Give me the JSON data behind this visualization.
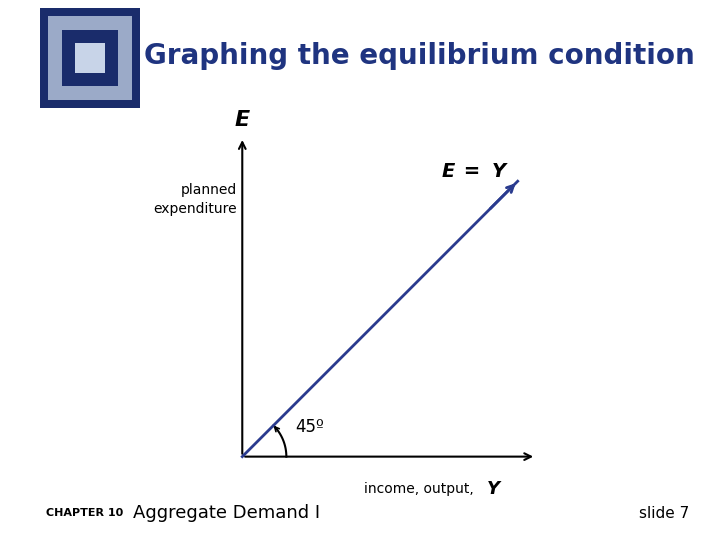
{
  "title": "Graphing the equilibrium condition",
  "title_color": "#1F3480",
  "title_fontsize": 20,
  "title_fontweight": "bold",
  "bg_color": "#FFFFFF",
  "left_bar_color": "#8FBC8F",
  "line_color": "#2A3B8F",
  "ylabel_text": "E",
  "planned_text": "planned\nexpenditure",
  "xlabel_text": "income, output,",
  "xlabel_Y": "Y",
  "eq_label_E": "E",
  "eq_label_eq": " =",
  "eq_label_Y": "Y",
  "angle_label": "45º",
  "footer_chapter": "CHAPTER 10",
  "footer_main": "Aggregate Demand I",
  "footer_slide": "slide 7"
}
